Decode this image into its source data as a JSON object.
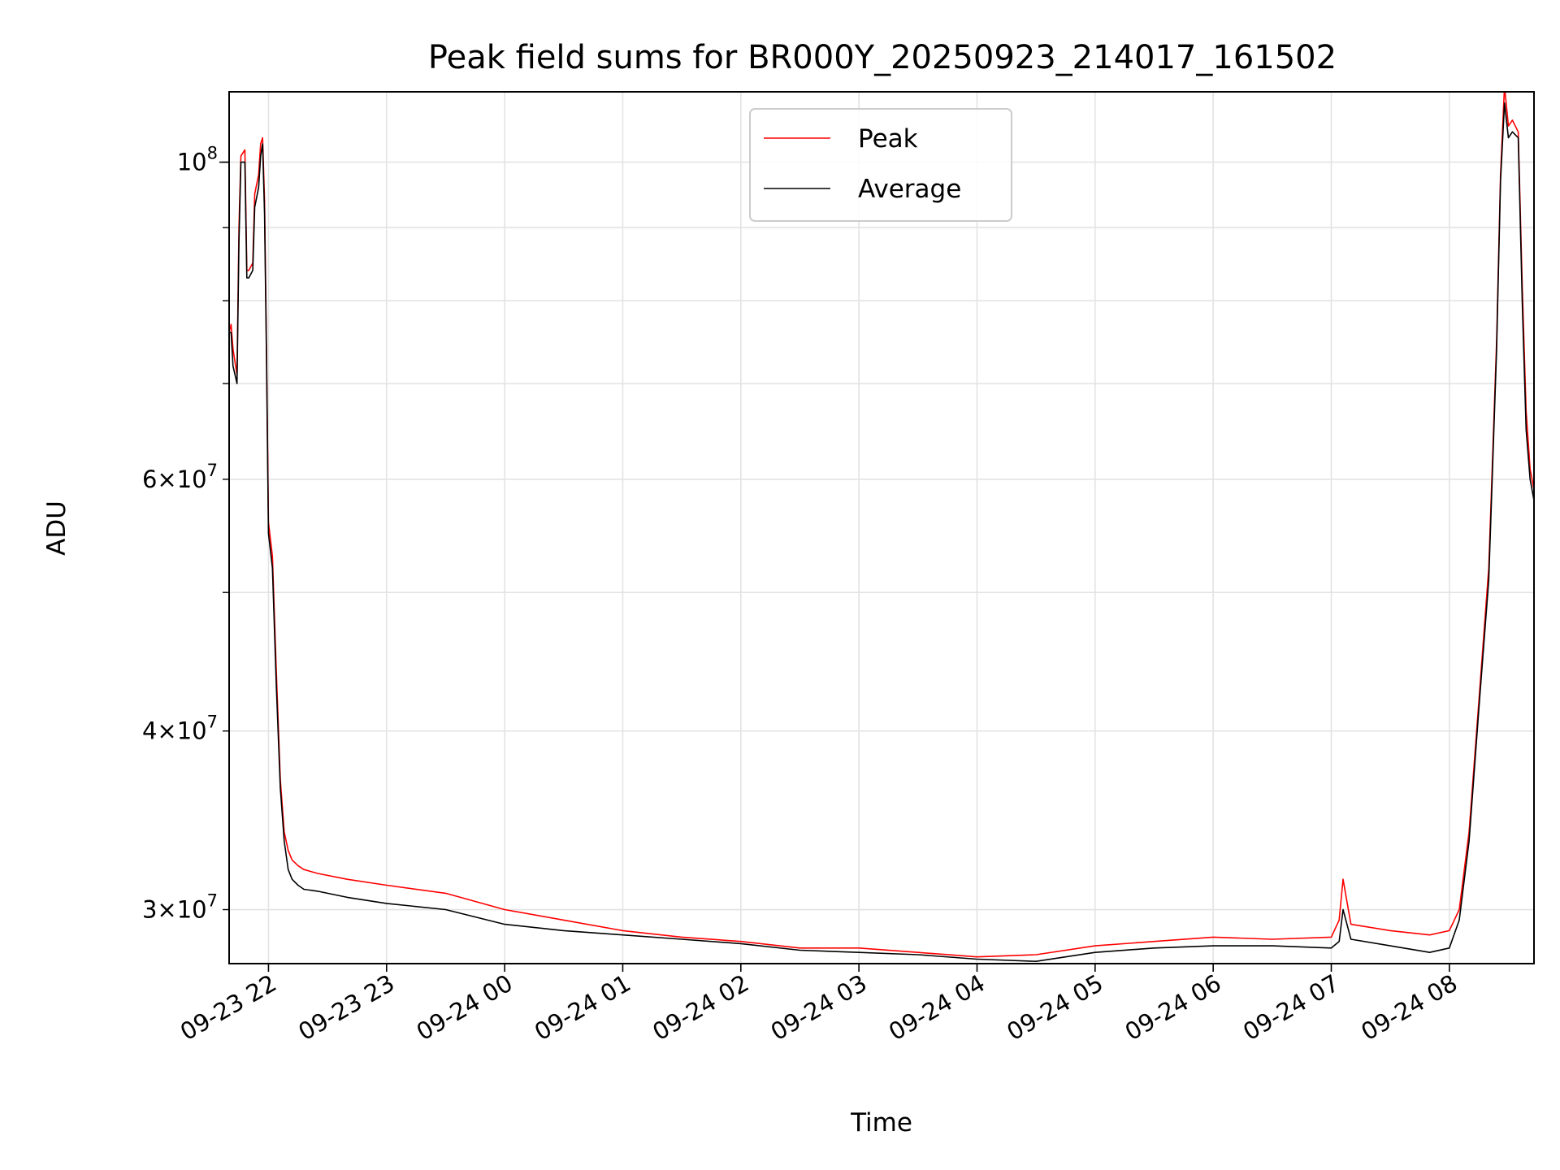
{
  "chart_data": {
    "type": "line",
    "title": "Peak field sums for BR000Y_20250923_214017_161502",
    "xlabel": "Time",
    "ylabel": "ADU",
    "x_range": [
      "2025-09-23 21:40",
      "2025-09-24 08:43"
    ],
    "ylim": [
      27500000,
      112000000
    ],
    "y_scale": "log",
    "grid": true,
    "legend_position": "top-center",
    "x_ticks": [
      "09-23 22",
      "09-23 23",
      "09-24 00",
      "09-24 01",
      "09-24 02",
      "09-24 03",
      "09-24 04",
      "09-24 05",
      "09-24 06",
      "09-24 07",
      "09-24 08"
    ],
    "y_ticks_major": [
      {
        "value": 100000000,
        "base": "10",
        "exp": "8",
        "mant": ""
      }
    ],
    "y_ticks_minor": [
      {
        "value": 30000000,
        "mant": "3",
        "base": "10",
        "exp": "7"
      },
      {
        "value": 40000000,
        "mant": "4",
        "base": "10",
        "exp": "7"
      },
      {
        "value": 60000000,
        "mant": "6",
        "base": "10",
        "exp": "7"
      }
    ],
    "y_ticks_minor_unlabeled": [
      50000000,
      70000000,
      80000000,
      90000000
    ],
    "series": [
      {
        "name": "Peak",
        "color": "#ff0000",
        "x": [
          "2025-09-23 21:40",
          "2025-09-23 21:41",
          "2025-09-23 21:42",
          "2025-09-23 21:44",
          "2025-09-23 21:45",
          "2025-09-23 21:46",
          "2025-09-23 21:48",
          "2025-09-23 21:49",
          "2025-09-23 21:50",
          "2025-09-23 21:52",
          "2025-09-23 21:53",
          "2025-09-23 21:55",
          "2025-09-23 21:56",
          "2025-09-23 21:57",
          "2025-09-23 21:58",
          "2025-09-23 21:59",
          "2025-09-23 22:00",
          "2025-09-23 22:02",
          "2025-09-23 22:04",
          "2025-09-23 22:06",
          "2025-09-23 22:08",
          "2025-09-23 22:10",
          "2025-09-23 22:12",
          "2025-09-23 22:15",
          "2025-09-23 22:18",
          "2025-09-23 22:25",
          "2025-09-23 22:40",
          "2025-09-23 23:00",
          "2025-09-23 23:30",
          "2025-09-24 00:00",
          "2025-09-24 00:30",
          "2025-09-24 01:00",
          "2025-09-24 01:30",
          "2025-09-24 02:00",
          "2025-09-24 02:30",
          "2025-09-24 03:00",
          "2025-09-24 03:30",
          "2025-09-24 04:00",
          "2025-09-24 04:30",
          "2025-09-24 05:00",
          "2025-09-24 05:30",
          "2025-09-24 06:00",
          "2025-09-24 06:30",
          "2025-09-24 07:00",
          "2025-09-24 07:04",
          "2025-09-24 07:06",
          "2025-09-24 07:10",
          "2025-09-24 07:30",
          "2025-09-24 07:50",
          "2025-09-24 08:00",
          "2025-09-24 08:05",
          "2025-09-24 08:10",
          "2025-09-24 08:15",
          "2025-09-24 08:20",
          "2025-09-24 08:24",
          "2025-09-24 08:26",
          "2025-09-24 08:28",
          "2025-09-24 08:30",
          "2025-09-24 08:32",
          "2025-09-24 08:35",
          "2025-09-24 08:37",
          "2025-09-24 08:39",
          "2025-09-24 08:41",
          "2025-09-24 08:43"
        ],
        "y": [
          76000000,
          77000000,
          74000000,
          71000000,
          90000000,
          101000000,
          102000000,
          84000000,
          84000000,
          85000000,
          95000000,
          98000000,
          103000000,
          104000000,
          94000000,
          74000000,
          56000000,
          53000000,
          44000000,
          37000000,
          34000000,
          33000000,
          32500000,
          32200000,
          32000000,
          31800000,
          31500000,
          31200000,
          30800000,
          30000000,
          29500000,
          29000000,
          28700000,
          28500000,
          28200000,
          28200000,
          28000000,
          27800000,
          27900000,
          28300000,
          28500000,
          28700000,
          28600000,
          28700000,
          29500000,
          31500000,
          29300000,
          29000000,
          28800000,
          29000000,
          30000000,
          34000000,
          42000000,
          52000000,
          75000000,
          98000000,
          113000000,
          106000000,
          107000000,
          105000000,
          82000000,
          67000000,
          61000000,
          59000000
        ]
      },
      {
        "name": "Average",
        "color": "#000000",
        "x": [
          "2025-09-23 21:40",
          "2025-09-23 21:41",
          "2025-09-23 21:42",
          "2025-09-23 21:44",
          "2025-09-23 21:45",
          "2025-09-23 21:46",
          "2025-09-23 21:48",
          "2025-09-23 21:49",
          "2025-09-23 21:50",
          "2025-09-23 21:52",
          "2025-09-23 21:53",
          "2025-09-23 21:55",
          "2025-09-23 21:56",
          "2025-09-23 21:57",
          "2025-09-23 21:58",
          "2025-09-23 21:59",
          "2025-09-23 22:00",
          "2025-09-23 22:02",
          "2025-09-23 22:04",
          "2025-09-23 22:06",
          "2025-09-23 22:08",
          "2025-09-23 22:10",
          "2025-09-23 22:12",
          "2025-09-23 22:15",
          "2025-09-23 22:18",
          "2025-09-23 22:25",
          "2025-09-23 22:40",
          "2025-09-23 23:00",
          "2025-09-23 23:30",
          "2025-09-24 00:00",
          "2025-09-24 00:30",
          "2025-09-24 01:00",
          "2025-09-24 01:30",
          "2025-09-24 02:00",
          "2025-09-24 02:30",
          "2025-09-24 03:00",
          "2025-09-24 03:30",
          "2025-09-24 04:00",
          "2025-09-24 04:30",
          "2025-09-24 05:00",
          "2025-09-24 05:30",
          "2025-09-24 06:00",
          "2025-09-24 06:30",
          "2025-09-24 07:00",
          "2025-09-24 07:04",
          "2025-09-24 07:06",
          "2025-09-24 07:10",
          "2025-09-24 07:30",
          "2025-09-24 07:50",
          "2025-09-24 08:00",
          "2025-09-24 08:05",
          "2025-09-24 08:10",
          "2025-09-24 08:15",
          "2025-09-24 08:20",
          "2025-09-24 08:24",
          "2025-09-24 08:26",
          "2025-09-24 08:28",
          "2025-09-24 08:30",
          "2025-09-24 08:32",
          "2025-09-24 08:35",
          "2025-09-24 08:37",
          "2025-09-24 08:39",
          "2025-09-24 08:41",
          "2025-09-24 08:43"
        ],
        "y": [
          76000000,
          76000000,
          72000000,
          70000000,
          88000000,
          100000000,
          100000000,
          83000000,
          83000000,
          84000000,
          93000000,
          96000000,
          101000000,
          103000000,
          92000000,
          73000000,
          55000000,
          52000000,
          43000000,
          36500000,
          33500000,
          32000000,
          31500000,
          31200000,
          31000000,
          30900000,
          30600000,
          30300000,
          30000000,
          29300000,
          29000000,
          28800000,
          28600000,
          28400000,
          28100000,
          28000000,
          27900000,
          27700000,
          27600000,
          28000000,
          28200000,
          28300000,
          28300000,
          28200000,
          28500000,
          30000000,
          28600000,
          28300000,
          28000000,
          28200000,
          29500000,
          33500000,
          41500000,
          51000000,
          74000000,
          97000000,
          110000000,
          104000000,
          105000000,
          104000000,
          80000000,
          65000000,
          60000000,
          58000000
        ]
      }
    ]
  }
}
